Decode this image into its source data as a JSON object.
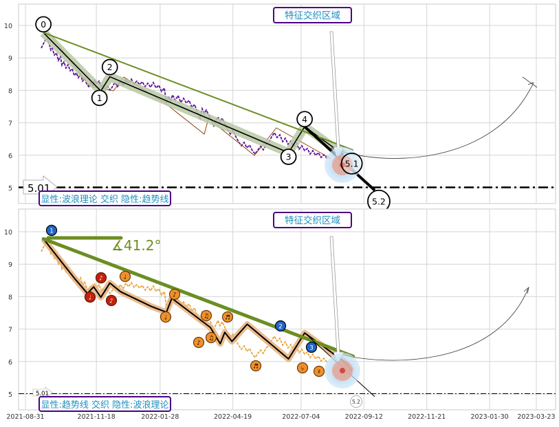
{
  "colors": {
    "grid": "#d4d4d4",
    "frame": "#c8c8c8",
    "olive": "#6b8e23",
    "purple": "#5a0f9a",
    "orange": "#e8a640",
    "wave_fill": "#b8c8a4",
    "label_border": "#4b0082",
    "label_text": "#1f8fbf",
    "blue_badge": "#1f66c9",
    "red_badge": "#c8200a",
    "orange_badge": "#f0902a",
    "target_blue": "#b7d9f2",
    "target_red": "#e28b7a"
  },
  "chart_data": [
    {
      "type": "line",
      "panel": "top",
      "region_label": "特征交织区域",
      "footer_label": "显性:波浪理论 交织 隐性:趋势线",
      "ylim": [
        4.55,
        10.6
      ],
      "yticks": [
        "5",
        "6",
        "7",
        "8",
        "9",
        "10"
      ],
      "support_line": 5.01,
      "support_label": "5.01",
      "wave_labels": [
        "0",
        "1",
        "2",
        "3",
        "4",
        "5.1",
        "5.2"
      ],
      "wave_points": [
        {
          "x": "2021-09-20",
          "y": 9.78,
          "label": "0"
        },
        {
          "x": "2021-11-23",
          "y": 7.98,
          "label": "1"
        },
        {
          "x": "2021-12-03",
          "y": 8.42,
          "label": "2"
        },
        {
          "x": "2022-06-20",
          "y": 6.08,
          "label": "3"
        },
        {
          "x": "2022-07-08",
          "y": 6.88,
          "label": "4"
        },
        {
          "x": "2022-08-31",
          "y": 5.68,
          "label": "5.1"
        },
        {
          "x": "2022-09-24",
          "y": 4.92,
          "label": "5.2"
        }
      ],
      "trendline": [
        {
          "x": "2021-09-20",
          "y": 9.78
        },
        {
          "x": "2022-08-31",
          "y": 6.16
        }
      ]
    },
    {
      "type": "line",
      "panel": "bottom",
      "region_label": "特征交织区域",
      "footer_label": "显性:趋势线 交织 隐性:波浪理论",
      "ylim": [
        4.55,
        10.6
      ],
      "yticks": [
        "5",
        "6",
        "7",
        "8",
        "9",
        "10"
      ],
      "support_line": 5.01,
      "support_label": "5.01",
      "angle_label": "∡41.2°",
      "trend_badges": [
        "1",
        "2",
        "3"
      ],
      "end_label": "5.2",
      "x_ticks": [
        "2021-08-31",
        "2021-11-18",
        "2022-01-28",
        "2022-04-19",
        "2022-07-04",
        "2022-09-12",
        "2022-11-21",
        "2023-01-30",
        "2023-03-23"
      ],
      "trendline": [
        {
          "x": "2021-09-20",
          "y": 9.78
        },
        {
          "x": "2022-08-31",
          "y": 6.16
        }
      ]
    }
  ]
}
